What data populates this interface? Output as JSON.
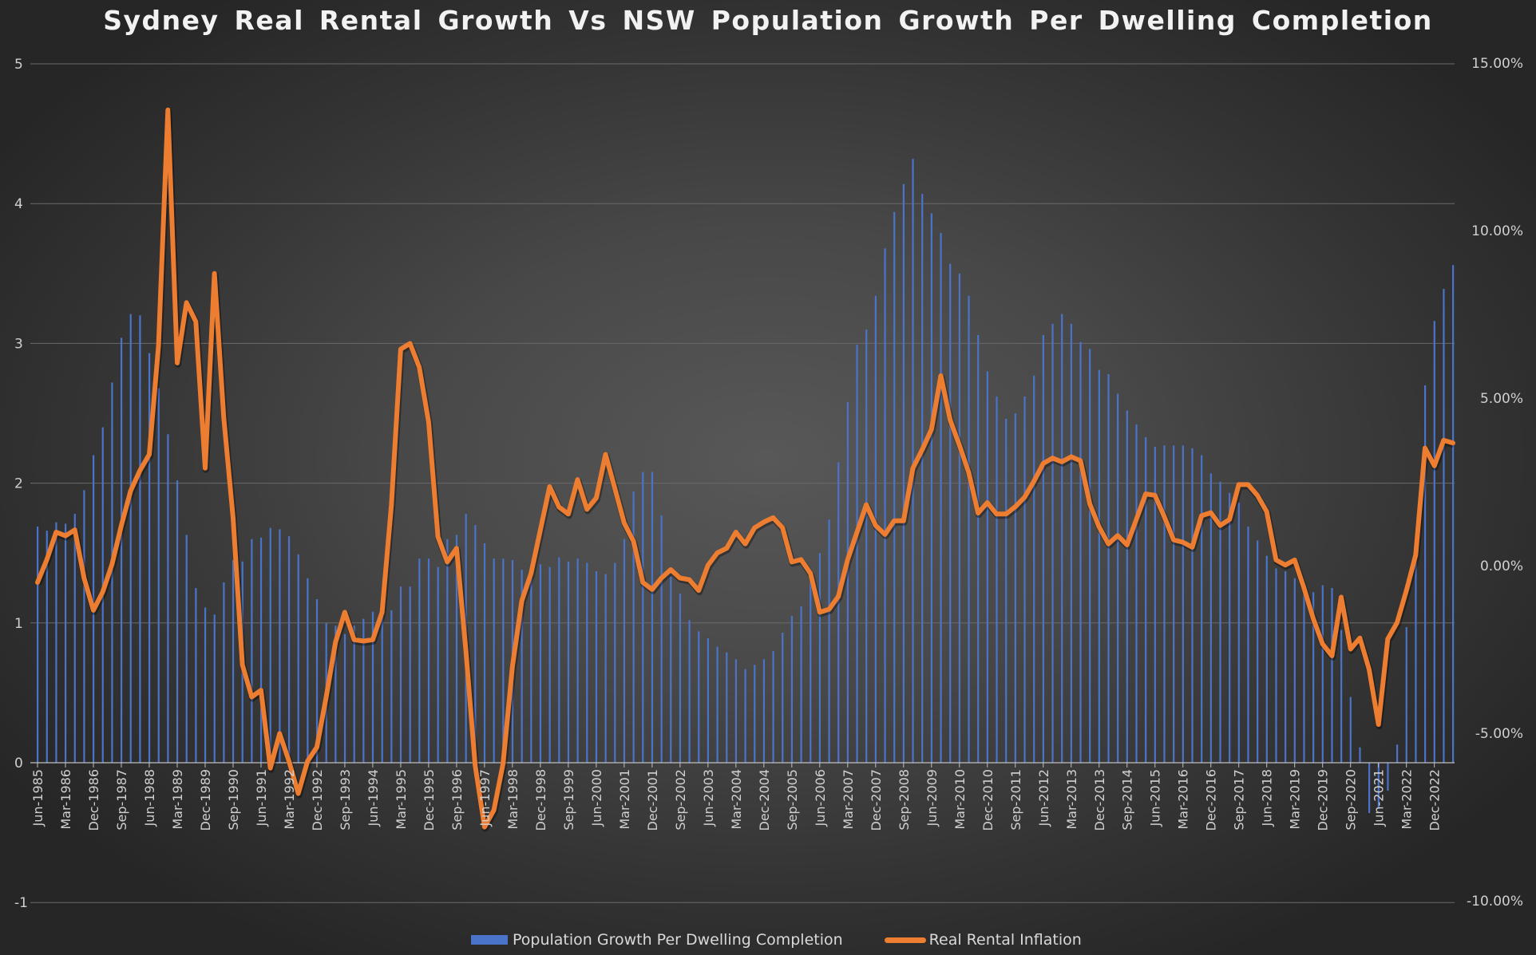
{
  "chart_data": {
    "type": "bar+line",
    "title": "Sydney Real Rental Growth Vs NSW Population  Growth Per Dwelling Completion",
    "xlabel": "",
    "ylabel_left": "",
    "ylabel_right": "",
    "ylim_left": [
      -1,
      5
    ],
    "ylim_right": [
      -10,
      15
    ],
    "left_tick_labels": [
      "5",
      "4",
      "3",
      "2",
      "1",
      "0",
      "-1"
    ],
    "right_tick_labels": [
      "15.00%",
      "10.00%",
      "5.00%",
      "0.00%",
      "-5.00%",
      "-10.00%"
    ],
    "grid": true,
    "legend_position": "bottom",
    "colors": {
      "bars": "#4a74c9",
      "line": "#ed7d31",
      "background": "#3c3c3c"
    },
    "x_tick_labels": [
      "Jun-1985",
      "Mar-1986",
      "Dec-1986",
      "Sep-1987",
      "Jun-1988",
      "Mar-1989",
      "Dec-1989",
      "Sep-1990",
      "Jun-1991",
      "Mar-1992",
      "Dec-1992",
      "Sep-1993",
      "Jun-1994",
      "Mar-1995",
      "Dec-1995",
      "Sep-1996",
      "Jun-1997",
      "Mar-1998",
      "Dec-1998",
      "Sep-1999",
      "Jun-2000",
      "Mar-2001",
      "Dec-2001",
      "Sep-2002",
      "Jun-2003",
      "Mar-2004",
      "Dec-2004",
      "Sep-2005",
      "Jun-2006",
      "Mar-2007",
      "Dec-2007",
      "Sep-2008",
      "Jun-2009",
      "Mar-2010",
      "Dec-2010",
      "Sep-2011",
      "Jun-2012",
      "Mar-2013",
      "Dec-2013",
      "Sep-2014",
      "Jun-2015",
      "Mar-2016",
      "Dec-2016",
      "Sep-2017",
      "Jun-2018",
      "Mar-2019",
      "Dec-2019",
      "Sep-2020",
      "Jun-2021",
      "Mar-2022",
      "Dec-2022"
    ],
    "categories": [
      "Jun-1985",
      "Sep-1985",
      "Dec-1985",
      "Mar-1986",
      "Jun-1986",
      "Sep-1986",
      "Dec-1986",
      "Mar-1987",
      "Jun-1987",
      "Sep-1987",
      "Dec-1987",
      "Mar-1988",
      "Jun-1988",
      "Sep-1988",
      "Dec-1988",
      "Mar-1989",
      "Jun-1989",
      "Sep-1989",
      "Dec-1989",
      "Mar-1990",
      "Jun-1990",
      "Sep-1990",
      "Dec-1990",
      "Mar-1991",
      "Jun-1991",
      "Sep-1991",
      "Dec-1991",
      "Mar-1992",
      "Jun-1992",
      "Sep-1992",
      "Dec-1992",
      "Mar-1993",
      "Jun-1993",
      "Sep-1993",
      "Dec-1993",
      "Mar-1994",
      "Jun-1994",
      "Sep-1994",
      "Dec-1994",
      "Mar-1995",
      "Jun-1995",
      "Sep-1995",
      "Dec-1995",
      "Mar-1996",
      "Jun-1996",
      "Sep-1996",
      "Dec-1996",
      "Mar-1997",
      "Jun-1997",
      "Sep-1997",
      "Dec-1997",
      "Mar-1998",
      "Jun-1998",
      "Sep-1998",
      "Dec-1998",
      "Mar-1999",
      "Jun-1999",
      "Sep-1999",
      "Dec-1999",
      "Mar-2000",
      "Jun-2000",
      "Sep-2000",
      "Dec-2000",
      "Mar-2001",
      "Jun-2001",
      "Sep-2001",
      "Dec-2001",
      "Mar-2002",
      "Jun-2002",
      "Sep-2002",
      "Dec-2002",
      "Mar-2003",
      "Jun-2003",
      "Sep-2003",
      "Dec-2003",
      "Mar-2004",
      "Jun-2004",
      "Sep-2004",
      "Dec-2004",
      "Mar-2005",
      "Jun-2005",
      "Sep-2005",
      "Dec-2005",
      "Mar-2006",
      "Jun-2006",
      "Sep-2006",
      "Dec-2006",
      "Mar-2007",
      "Jun-2007",
      "Sep-2007",
      "Dec-2007",
      "Mar-2008",
      "Jun-2008",
      "Sep-2008",
      "Dec-2008",
      "Mar-2009",
      "Jun-2009",
      "Sep-2009",
      "Dec-2009",
      "Mar-2010",
      "Jun-2010",
      "Sep-2010",
      "Dec-2010",
      "Mar-2011",
      "Jun-2011",
      "Sep-2011",
      "Dec-2011",
      "Mar-2012",
      "Jun-2012",
      "Sep-2012",
      "Dec-2012",
      "Mar-2013",
      "Jun-2013",
      "Sep-2013",
      "Dec-2013",
      "Mar-2014",
      "Jun-2014",
      "Sep-2014",
      "Dec-2014",
      "Mar-2015",
      "Jun-2015",
      "Sep-2015",
      "Dec-2015",
      "Mar-2016",
      "Jun-2016",
      "Sep-2016",
      "Dec-2016",
      "Mar-2017",
      "Jun-2017",
      "Sep-2017",
      "Dec-2017",
      "Mar-2018",
      "Jun-2018",
      "Sep-2018",
      "Dec-2018",
      "Mar-2019",
      "Jun-2019",
      "Sep-2019",
      "Dec-2019",
      "Mar-2020",
      "Jun-2020",
      "Sep-2020",
      "Dec-2020",
      "Mar-2021",
      "Jun-2021",
      "Sep-2021",
      "Dec-2021",
      "Mar-2022",
      "Jun-2022",
      "Sep-2022",
      "Dec-2022",
      "Mar-2023",
      "Jun-2023"
    ],
    "series": [
      {
        "name": "Population Growth Per Dwelling Completion",
        "type": "bar",
        "axis": "left",
        "values": [
          1.69,
          1.66,
          1.72,
          1.71,
          1.78,
          1.95,
          2.2,
          2.4,
          2.72,
          3.04,
          3.21,
          3.2,
          2.93,
          2.68,
          2.35,
          2.02,
          1.63,
          1.25,
          1.11,
          1.06,
          1.29,
          1.45,
          1.44,
          1.6,
          1.61,
          1.68,
          1.67,
          1.62,
          1.49,
          1.32,
          1.17,
          1.0,
          0.98,
          0.92,
          0.98,
          1.03,
          1.08,
          1.07,
          1.09,
          1.26,
          1.26,
          1.46,
          1.46,
          1.4,
          1.6,
          1.63,
          1.78,
          1.7,
          1.57,
          1.46,
          1.46,
          1.45,
          1.38,
          1.42,
          1.42,
          1.4,
          1.47,
          1.44,
          1.46,
          1.43,
          1.37,
          1.35,
          1.43,
          1.6,
          1.94,
          2.08,
          2.08,
          1.77,
          1.33,
          1.21,
          1.02,
          0.94,
          0.89,
          0.83,
          0.79,
          0.74,
          0.67,
          0.7,
          0.74,
          0.8,
          0.93,
          1.05,
          1.12,
          1.3,
          1.5,
          1.74,
          2.15,
          2.58,
          2.99,
          3.1,
          3.34,
          3.68,
          3.94,
          4.14,
          4.32,
          4.07,
          3.93,
          3.79,
          3.57,
          3.5,
          3.34,
          3.06,
          2.8,
          2.62,
          2.46,
          2.5,
          2.62,
          2.77,
          3.06,
          3.14,
          3.21,
          3.14,
          3.01,
          2.96,
          2.81,
          2.78,
          2.64,
          2.52,
          2.42,
          2.33,
          2.26,
          2.27,
          2.27,
          2.27,
          2.25,
          2.2,
          2.07,
          2.01,
          1.93,
          1.86,
          1.69,
          1.59,
          1.48,
          1.39,
          1.37,
          1.32,
          1.24,
          1.22,
          1.27,
          1.25,
          0.95,
          0.47,
          0.11,
          -0.36,
          -0.33,
          -0.2,
          0.13,
          0.97,
          1.6,
          2.7,
          3.16,
          3.39,
          3.56
        ]
      },
      {
        "name": "Real Rental Inflation",
        "type": "line",
        "axis": "right",
        "unit": "%",
        "values": [
          -0.5,
          0.18,
          1.0,
          0.89,
          1.07,
          -0.37,
          -1.33,
          -0.78,
          0.04,
          1.2,
          2.23,
          2.84,
          3.32,
          6.58,
          13.6,
          6.05,
          7.85,
          7.28,
          2.91,
          8.72,
          4.41,
          1.41,
          -2.96,
          -3.92,
          -3.72,
          -6.04,
          -5.01,
          -5.83,
          -6.8,
          -5.83,
          -5.42,
          -3.92,
          -2.28,
          -1.39,
          -2.21,
          -2.25,
          -2.21,
          -1.39,
          1.82,
          6.46,
          6.63,
          5.92,
          4.28,
          0.86,
          0.11,
          0.52,
          -2.55,
          -5.97,
          -7.8,
          -7.3,
          -5.9,
          -3.0,
          -1.05,
          -0.23,
          1.07,
          2.36,
          1.75,
          1.54,
          2.57,
          1.68,
          2.02,
          3.32,
          2.3,
          1.27,
          0.73,
          -0.5,
          -0.71,
          -0.37,
          -0.12,
          -0.37,
          -0.42,
          -0.74,
          0.01,
          0.38,
          0.52,
          1.0,
          0.65,
          1.13,
          1.3,
          1.43,
          1.13,
          0.11,
          0.18,
          -0.23,
          -1.39,
          -1.3,
          -0.92,
          0.18,
          1.0,
          1.82,
          1.2,
          0.93,
          1.34,
          1.34,
          2.91,
          3.46,
          4.07,
          5.67,
          4.35,
          3.59,
          2.78,
          1.57,
          1.88,
          1.54,
          1.54,
          1.76,
          2.04,
          2.52,
          3.05,
          3.21,
          3.1,
          3.25,
          3.13,
          1.84,
          1.15,
          0.65,
          0.9,
          0.62,
          1.38,
          2.14,
          2.1,
          1.46,
          0.77,
          0.7,
          0.55,
          1.49,
          1.58,
          1.2,
          1.38,
          2.42,
          2.42,
          2.1,
          1.61,
          0.17,
          0.02,
          0.17,
          -0.67,
          -1.58,
          -2.34,
          -2.69,
          -0.94,
          -2.49,
          -2.16,
          -3.1,
          -4.74,
          -2.19,
          -1.7,
          -0.74,
          0.32,
          3.51,
          2.98,
          3.74,
          3.66
        ]
      }
    ]
  },
  "legend": {
    "bar_label": "Population Growth Per Dwelling Completion",
    "line_label": "Real Rental Inflation"
  }
}
